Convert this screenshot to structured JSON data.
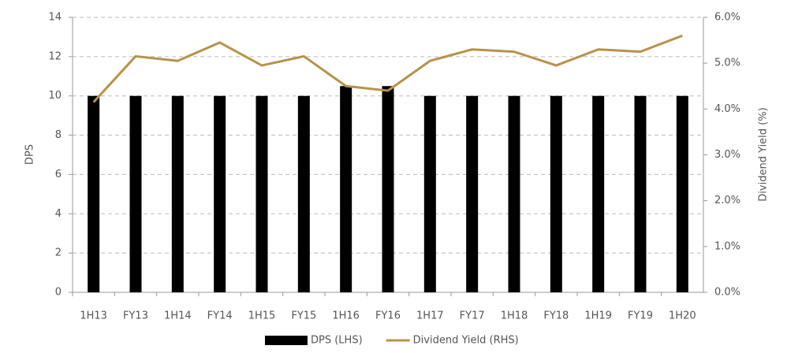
{
  "chart_data": {
    "type": "bar",
    "categories": [
      "1H13",
      "FY13",
      "1H14",
      "FY14",
      "1H15",
      "FY15",
      "1H16",
      "FY16",
      "1H17",
      "FY17",
      "1H18",
      "FY18",
      "1H19",
      "FY19",
      "1H20"
    ],
    "series": [
      {
        "name": "DPS (LHS)",
        "type": "bar",
        "color": "#000000",
        "values": [
          10,
          10,
          10,
          10,
          10,
          10,
          10.5,
          10.5,
          10,
          10,
          10,
          10,
          10,
          10,
          10
        ]
      },
      {
        "name": "Dividend Yield (RHS)",
        "type": "line",
        "axis": "y2",
        "color": "#b8924a",
        "values": [
          4.15,
          5.15,
          5.05,
          5.45,
          4.95,
          5.15,
          4.5,
          4.4,
          5.05,
          5.3,
          5.25,
          4.95,
          5.3,
          5.25,
          5.6
        ]
      }
    ],
    "ylabel": "DPS",
    "y2label": "Dividend Yield (%)",
    "ylim": [
      0,
      14
    ],
    "yticks": [
      0,
      2,
      4,
      6,
      8,
      10,
      12,
      14
    ],
    "y2lim": [
      0,
      6
    ],
    "y2ticks": [
      {
        "value": 0,
        "label": "0.0%"
      },
      {
        "value": 1,
        "label": "1.0%"
      },
      {
        "value": 2,
        "label": "2.0%"
      },
      {
        "value": 3,
        "label": "3.0%"
      },
      {
        "value": 4,
        "label": "4.0%"
      },
      {
        "value": 5,
        "label": "5.0%"
      },
      {
        "value": 6,
        "label": "6.0%"
      }
    ],
    "grid": true,
    "legend": "bottom"
  }
}
